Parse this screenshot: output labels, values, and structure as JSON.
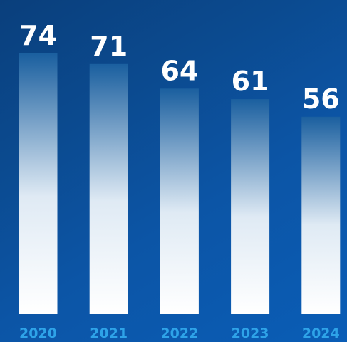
{
  "chart_data": {
    "type": "bar",
    "title": "",
    "xlabel": "",
    "ylabel": "",
    "categories": [
      "2020",
      "2021",
      "2022",
      "2023",
      "2024"
    ],
    "values": [
      74,
      71,
      64,
      61,
      56
    ],
    "ylim": [
      0,
      74
    ],
    "grid": false,
    "legend": "none",
    "colors": {
      "background_dark": "#0a3f7c",
      "background_light": "#0a5db6",
      "bar_top": "#1a5f9f",
      "bar_bottom": "#ffffff",
      "value_label": "#ffffff",
      "tick_label": "#2ea3e8"
    }
  }
}
